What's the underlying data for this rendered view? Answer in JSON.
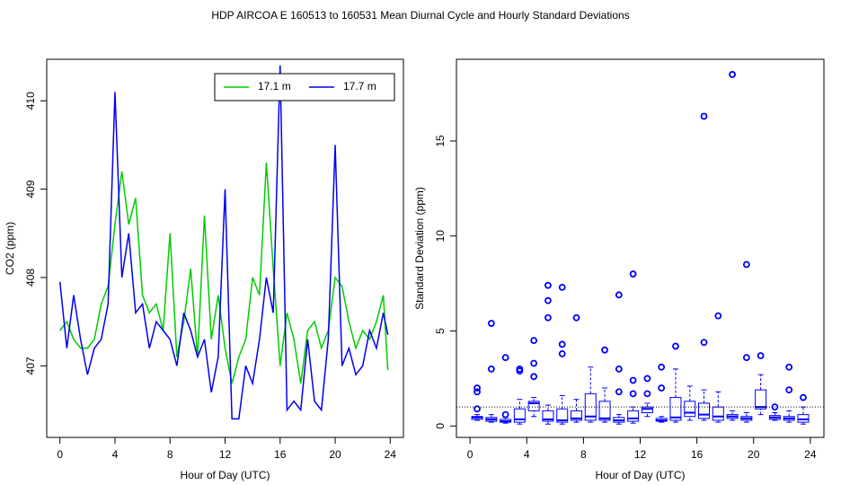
{
  "title": "HDP   AIRCOA E   160513 to 160531   Mean Diurnal Cycle and Hourly Standard Deviations",
  "chart_data": [
    {
      "type": "line",
      "xlabel": "Hour of Day (UTC)",
      "ylabel": "CO2 (ppm)",
      "xlim": [
        -0.96,
        24.96
      ],
      "ylim": [
        406.19,
        410.47
      ],
      "xticks": [
        0,
        4,
        8,
        12,
        16,
        20,
        24
      ],
      "yticks": [
        407,
        408,
        409,
        410
      ],
      "legend": "topright",
      "x": [
        0,
        0.5,
        1,
        1.5,
        2,
        2.5,
        3,
        3.5,
        4,
        4.5,
        5,
        5.5,
        6,
        6.5,
        7,
        7.5,
        8,
        8.5,
        9,
        9.5,
        10,
        10.5,
        11,
        11.5,
        12,
        12.5,
        13,
        13.5,
        14,
        14.5,
        15,
        15.5,
        16,
        16.5,
        17,
        17.5,
        18,
        18.5,
        19,
        19.5,
        20,
        20.5,
        21,
        21.5,
        22,
        22.5,
        23,
        23.5,
        23.83
      ],
      "series": [
        {
          "name": "17.1 m",
          "color": "#00cc00",
          "values": [
            407.4,
            407.5,
            407.3,
            407.2,
            407.2,
            407.3,
            407.7,
            407.9,
            408.6,
            409.2,
            408.6,
            408.9,
            407.8,
            407.6,
            407.7,
            407.4,
            408.5,
            407.1,
            407.5,
            408.1,
            407.1,
            408.7,
            407.3,
            407.8,
            407.2,
            406.8,
            407.1,
            407.3,
            408.0,
            407.8,
            409.3,
            408.1,
            407.0,
            407.6,
            407.3,
            406.8,
            407.4,
            407.5,
            407.2,
            407.4,
            408.0,
            407.9,
            407.5,
            407.2,
            407.4,
            407.3,
            407.5,
            407.8,
            406.95
          ]
        },
        {
          "name": "17.7 m",
          "color": "#0000ee",
          "values": [
            407.95,
            407.2,
            407.8,
            407.3,
            406.9,
            407.2,
            407.3,
            407.7,
            410.1,
            408.0,
            408.5,
            407.6,
            407.7,
            407.2,
            407.5,
            407.4,
            407.3,
            407.0,
            407.6,
            407.4,
            407.1,
            407.3,
            406.7,
            407.1,
            409.0,
            406.4,
            406.4,
            407.0,
            406.8,
            407.3,
            408.0,
            407.6,
            410.4,
            406.5,
            406.6,
            406.5,
            407.3,
            406.6,
            406.5,
            407.3,
            409.5,
            407.0,
            407.2,
            406.9,
            407.0,
            407.4,
            407.2,
            407.6,
            407.35
          ]
        }
      ]
    },
    {
      "type": "box",
      "xlabel": "Hour of Day (UTC)",
      "ylabel": "Standard Deviation (ppm)",
      "xlim": [
        -0.96,
        24.96
      ],
      "ylim": [
        -0.6,
        19.3
      ],
      "xticks": [
        0,
        4,
        8,
        12,
        16,
        20,
        24
      ],
      "yticks": [
        0,
        5,
        10,
        15
      ],
      "color": "#0000ff",
      "reference_line": 1,
      "x": [
        0.5,
        1.5,
        2.5,
        3.5,
        4.5,
        5.5,
        6.5,
        7.5,
        8.5,
        9.5,
        10.5,
        11.5,
        12.5,
        13.5,
        14.5,
        15.5,
        16.5,
        17.5,
        18.5,
        19.5,
        20.5,
        21.5,
        22.5,
        23.5
      ],
      "boxes": [
        {
          "low": 0.3,
          "q1": 0.35,
          "median": 0.45,
          "q3": 0.5,
          "high": 0.6,
          "outliers": [
            0.9,
            1.8,
            2.0
          ]
        },
        {
          "low": 0.2,
          "q1": 0.25,
          "median": 0.35,
          "q3": 0.45,
          "high": 0.6,
          "outliers": [
            3.0,
            5.4
          ]
        },
        {
          "low": 0.15,
          "q1": 0.2,
          "median": 0.25,
          "q3": 0.35,
          "high": 0.45,
          "outliers": [
            0.6,
            3.6
          ]
        },
        {
          "low": 0.1,
          "q1": 0.2,
          "median": 0.35,
          "q3": 0.9,
          "high": 1.4,
          "outliers": [
            2.9,
            3.0
          ]
        },
        {
          "low": 0.5,
          "q1": 0.8,
          "median": 1.2,
          "q3": 1.3,
          "high": 1.5,
          "outliers": [
            2.6,
            3.3,
            4.5
          ]
        },
        {
          "low": 0.1,
          "q1": 0.25,
          "median": 0.35,
          "q3": 0.8,
          "high": 1.1,
          "outliers": [
            5.7,
            6.6,
            7.4
          ]
        },
        {
          "low": 0.1,
          "q1": 0.2,
          "median": 0.3,
          "q3": 0.9,
          "high": 1.6,
          "outliers": [
            3.8,
            4.3,
            7.3
          ]
        },
        {
          "low": 0.2,
          "q1": 0.3,
          "median": 0.4,
          "q3": 0.8,
          "high": 1.4,
          "outliers": [
            5.7
          ]
        },
        {
          "low": 0.2,
          "q1": 0.3,
          "median": 0.5,
          "q3": 1.7,
          "high": 3.1,
          "outliers": []
        },
        {
          "low": 0.2,
          "q1": 0.3,
          "median": 0.4,
          "q3": 1.3,
          "high": 2.0,
          "outliers": [
            4.0
          ]
        },
        {
          "low": 0.1,
          "q1": 0.2,
          "median": 0.3,
          "q3": 0.45,
          "high": 0.6,
          "outliers": [
            1.8,
            3.0,
            6.9
          ]
        },
        {
          "low": 0.15,
          "q1": 0.25,
          "median": 0.4,
          "q3": 0.8,
          "high": 1.0,
          "outliers": [
            1.7,
            2.4,
            8.0
          ]
        },
        {
          "low": 0.5,
          "q1": 0.7,
          "median": 0.9,
          "q3": 1.0,
          "high": 1.2,
          "outliers": [
            1.7,
            2.5
          ]
        },
        {
          "low": 0.2,
          "q1": 0.25,
          "median": 0.3,
          "q3": 0.4,
          "high": 0.5,
          "outliers": [
            2.0,
            3.1
          ]
        },
        {
          "low": 0.2,
          "q1": 0.3,
          "median": 0.45,
          "q3": 1.5,
          "high": 3.0,
          "outliers": [
            4.2
          ]
        },
        {
          "low": 0.3,
          "q1": 0.5,
          "median": 0.7,
          "q3": 1.3,
          "high": 2.1,
          "outliers": []
        },
        {
          "low": 0.3,
          "q1": 0.4,
          "median": 0.6,
          "q3": 1.2,
          "high": 1.9,
          "outliers": [
            4.4,
            16.3
          ]
        },
        {
          "low": 0.2,
          "q1": 0.3,
          "median": 0.5,
          "q3": 1.0,
          "high": 1.8,
          "outliers": [
            5.8
          ]
        },
        {
          "low": 0.3,
          "q1": 0.4,
          "median": 0.5,
          "q3": 0.6,
          "high": 0.8,
          "outliers": [
            18.5
          ]
        },
        {
          "low": 0.2,
          "q1": 0.3,
          "median": 0.4,
          "q3": 0.5,
          "high": 0.7,
          "outliers": [
            3.6,
            8.5
          ]
        },
        {
          "low": 0.6,
          "q1": 0.9,
          "median": 1.0,
          "q3": 1.9,
          "high": 2.7,
          "outliers": [
            3.7
          ]
        },
        {
          "low": 0.3,
          "q1": 0.35,
          "median": 0.45,
          "q3": 0.55,
          "high": 0.7,
          "outliers": [
            1.0
          ]
        },
        {
          "low": 0.2,
          "q1": 0.3,
          "median": 0.4,
          "q3": 0.5,
          "high": 0.8,
          "outliers": [
            1.9,
            3.1
          ]
        },
        {
          "low": 0.1,
          "q1": 0.2,
          "median": 0.35,
          "q3": 0.6,
          "high": 1.0,
          "outliers": [
            1.5
          ]
        }
      ]
    }
  ]
}
